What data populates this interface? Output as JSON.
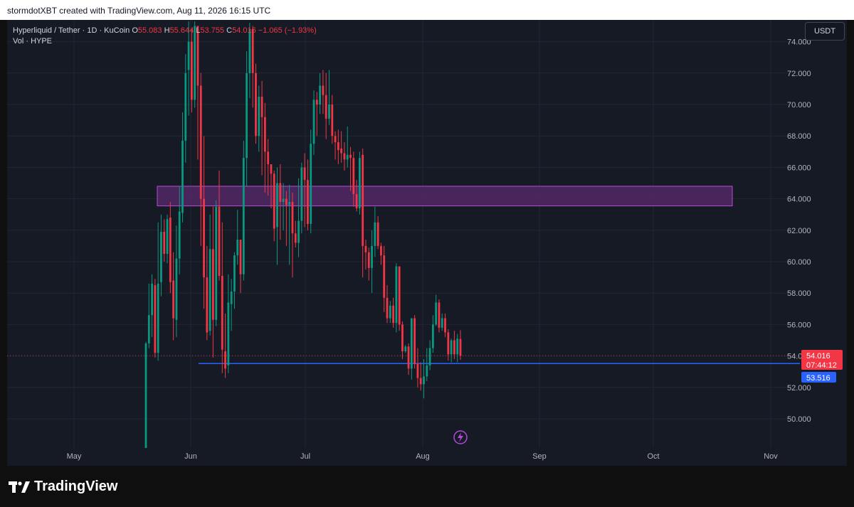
{
  "header": {
    "attribution": "stormdotXBT created with TradingView.com, Aug 11, 2026 16:15 UTC"
  },
  "legend": {
    "symbol": "Hyperliquid / Tether · 1D · KuCoin",
    "open_label": "O",
    "open_value": "55.083",
    "high_label": "H",
    "high_value": "55.644",
    "low_label": "L",
    "low_value": "53.755",
    "close_label": "C",
    "close_value": "54.016",
    "change": "−1.065 (−1.93%)",
    "volume": "Vol · HYPE"
  },
  "currency_button": "USDT",
  "price_tags": {
    "last_price": "54.016",
    "countdown": "07:44:12",
    "level": "53.516"
  },
  "colors": {
    "background": "#161a25",
    "up": "#089981",
    "down": "#f23645",
    "zone_fill": "#5a2a6e",
    "zone_border": "#b34fd1",
    "support_line": "#2962ff",
    "alert_icon": "#b04ad8"
  },
  "footer": {
    "brand": "TradingView"
  },
  "chart_data": {
    "type": "candlestick",
    "y_axis": {
      "ticks": [
        "50.000",
        "52.000",
        "54.000",
        "56.000",
        "58.000",
        "60.000",
        "62.000",
        "64.000",
        "66.000",
        "68.000",
        "70.000",
        "72.000",
        "74.000"
      ],
      "range": [
        48.2,
        75.0
      ]
    },
    "x_axis": {
      "ticks": [
        "May",
        "Jun",
        "Jul",
        "Aug",
        "Sep",
        "Oct",
        "Nov"
      ]
    },
    "zone": {
      "from": 63.55,
      "to": 64.8
    },
    "support": 53.516,
    "last_price": 54.016,
    "candles": [
      [
        45.0,
        54.8,
        44.0,
        54.9
      ],
      [
        54.8,
        56.6,
        54.5,
        58.6
      ],
      [
        56.6,
        58.6,
        55.2,
        59.2
      ],
      [
        58.5,
        54.2,
        53.9,
        58.9
      ],
      [
        54.2,
        58.6,
        53.7,
        62.5
      ],
      [
        58.7,
        61.9,
        57.8,
        63.0
      ],
      [
        61.9,
        60.5,
        60.0,
        62.7
      ],
      [
        60.5,
        62.7,
        59.9,
        63.0
      ],
      [
        62.8,
        58.7,
        58.0,
        63.8
      ],
      [
        58.8,
        56.4,
        55.0,
        60.6
      ],
      [
        56.3,
        60.2,
        55.2,
        62.3
      ],
      [
        60.2,
        63.2,
        59.2,
        64.8
      ],
      [
        63.1,
        67.7,
        62.5,
        69.5
      ],
      [
        67.7,
        72.0,
        66.3,
        73.2
      ],
      [
        72.2,
        74.0,
        69.3,
        76.0
      ],
      [
        74.0,
        70.3,
        69.5,
        74.8
      ],
      [
        70.3,
        75.0,
        69.8,
        76.2
      ],
      [
        75.0,
        71.2,
        66.5,
        74.8
      ],
      [
        71.2,
        64.0,
        61.0,
        72.0
      ],
      [
        64.0,
        59.0,
        57.0,
        68.0
      ],
      [
        59.0,
        55.5,
        55.0,
        61.0
      ],
      [
        55.6,
        60.8,
        55.3,
        63.0
      ],
      [
        60.8,
        56.3,
        53.9,
        63.5
      ],
      [
        56.3,
        63.5,
        55.9,
        63.9
      ],
      [
        63.5,
        59.1,
        58.8,
        65.8
      ],
      [
        59.1,
        54.4,
        52.9,
        62.5
      ],
      [
        54.3,
        53.2,
        52.6,
        56.7
      ],
      [
        53.4,
        57.4,
        52.9,
        59.2
      ],
      [
        57.3,
        58.1,
        55.6,
        58.9
      ],
      [
        58.1,
        60.4,
        57.0,
        60.6
      ],
      [
        60.4,
        61.4,
        59.8,
        63.3
      ],
      [
        61.4,
        59.2,
        58.0,
        61.4
      ],
      [
        59.2,
        66.6,
        58.8,
        67.7
      ],
      [
        66.6,
        72.0,
        64.8,
        73.4
      ],
      [
        72.0,
        74.8,
        70.4,
        75.2
      ],
      [
        74.8,
        72.0,
        69.8,
        75.0
      ],
      [
        72.0,
        68.0,
        67.5,
        72.6
      ],
      [
        68.0,
        70.5,
        67.0,
        71.2
      ],
      [
        70.5,
        69.2,
        65.5,
        71.5
      ],
      [
        69.2,
        67.0,
        64.4,
        70.1
      ],
      [
        67.0,
        66.2,
        64.2,
        67.8
      ],
      [
        66.2,
        65.6,
        63.4,
        66.0
      ],
      [
        65.6,
        62.1,
        61.3,
        65.8
      ],
      [
        62.2,
        65.0,
        59.8,
        66.0
      ],
      [
        65.0,
        63.8,
        61.4,
        66.2
      ],
      [
        63.8,
        64.0,
        62.0,
        65.0
      ],
      [
        64.0,
        63.6,
        61.0,
        64.5
      ],
      [
        63.6,
        63.8,
        59.8,
        64.9
      ],
      [
        63.8,
        61.8,
        59.0,
        64.4
      ],
      [
        61.8,
        61.2,
        60.9,
        62.6
      ],
      [
        61.2,
        62.6,
        60.3,
        65.3
      ],
      [
        62.6,
        66.0,
        61.8,
        66.3
      ],
      [
        66.0,
        65.2,
        62.2,
        66.9
      ],
      [
        65.2,
        62.4,
        62.0,
        66.5
      ],
      [
        62.4,
        67.5,
        61.8,
        68.4
      ],
      [
        67.5,
        70.3,
        66.8,
        70.9
      ],
      [
        70.3,
        70.0,
        68.0,
        70.8
      ],
      [
        70.0,
        71.2,
        69.4,
        72.0
      ],
      [
        71.2,
        70.6,
        69.4,
        72.2
      ],
      [
        70.6,
        69.1,
        67.8,
        72.0
      ],
      [
        69.1,
        70.0,
        68.7,
        72.2
      ],
      [
        70.0,
        68.0,
        67.5,
        70.6
      ],
      [
        68.0,
        67.6,
        66.5,
        68.3
      ],
      [
        67.6,
        67.1,
        66.2,
        68.4
      ],
      [
        67.2,
        66.9,
        66.3,
        68.3
      ],
      [
        66.9,
        66.5,
        65.8,
        67.6
      ],
      [
        66.5,
        66.8,
        66.0,
        68.6
      ],
      [
        66.8,
        66.6,
        64.5,
        67.3
      ],
      [
        66.6,
        64.3,
        63.5,
        67.0
      ],
      [
        64.3,
        63.4,
        63.2,
        65.2
      ],
      [
        63.4,
        66.6,
        63.0,
        67.0
      ],
      [
        66.8,
        61.0,
        59.0,
        67.2
      ],
      [
        61.0,
        60.6,
        59.5,
        61.4
      ],
      [
        60.6,
        59.6,
        58.8,
        60.9
      ],
      [
        59.6,
        61.0,
        58.0,
        62.0
      ],
      [
        61.0,
        62.5,
        60.3,
        63.5
      ],
      [
        62.5,
        61.0,
        60.8,
        62.9
      ],
      [
        61.0,
        60.4,
        59.8,
        61.2
      ],
      [
        60.4,
        57.7,
        56.8,
        61.0
      ],
      [
        57.7,
        56.4,
        56.1,
        58.5
      ],
      [
        56.4,
        57.2,
        56.1,
        57.5
      ],
      [
        57.2,
        56.1,
        55.8,
        57.7
      ],
      [
        56.1,
        59.7,
        55.5,
        59.9
      ],
      [
        59.7,
        56.0,
        55.6,
        59.7
      ],
      [
        56.0,
        54.3,
        53.8,
        56.2
      ],
      [
        54.3,
        54.6,
        54.2,
        54.7
      ],
      [
        54.6,
        53.2,
        52.8,
        54.8
      ],
      [
        53.2,
        56.4,
        52.5,
        56.4
      ],
      [
        56.4,
        53.5,
        53.2,
        56.6
      ],
      [
        53.5,
        52.6,
        52.0,
        54.5
      ],
      [
        52.6,
        52.2,
        51.8,
        53.6
      ],
      [
        52.2,
        52.7,
        51.3,
        53.8
      ],
      [
        52.7,
        53.4,
        52.4,
        54.5
      ],
      [
        53.4,
        54.5,
        53.1,
        55.0
      ],
      [
        54.5,
        56.0,
        54.2,
        56.6
      ],
      [
        56.0,
        57.4,
        55.9,
        57.9
      ],
      [
        57.4,
        55.8,
        55.5,
        57.6
      ],
      [
        55.8,
        56.4,
        55.6,
        56.7
      ],
      [
        56.4,
        55.5,
        55.2,
        56.7
      ],
      [
        55.5,
        54.1,
        53.7,
        55.7
      ],
      [
        54.1,
        55.0,
        53.6,
        55.1
      ],
      [
        55.0,
        54.1,
        53.8,
        55.6
      ],
      [
        54.1,
        55.1,
        53.6,
        55.4
      ],
      [
        55.08,
        54.02,
        53.75,
        55.64
      ]
    ]
  }
}
